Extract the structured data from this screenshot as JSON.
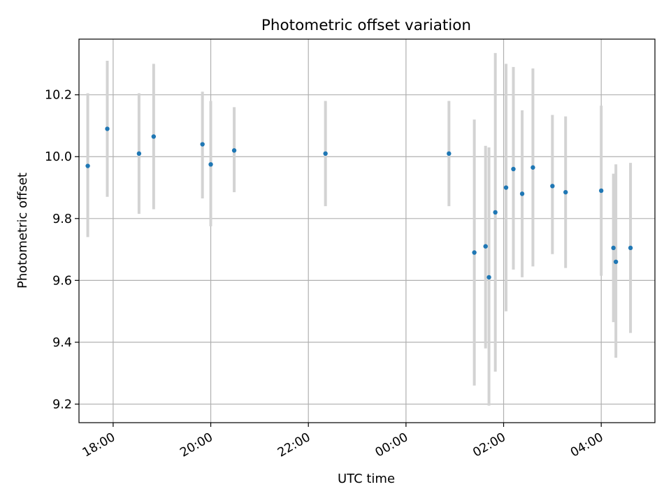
{
  "chart_data": {
    "type": "scatter",
    "title": "Photometric offset variation",
    "xlabel": "UTC time",
    "ylabel": "Photometric offset",
    "x_unit": "hour",
    "x_tick_labels": [
      "18:00",
      "20:00",
      "22:00",
      "00:00",
      "02:00",
      "04:00"
    ],
    "x_tick_values": [
      18,
      20,
      22,
      24,
      26,
      28
    ],
    "xlim": [
      17.3,
      29.1
    ],
    "y_tick_labels": [
      "9.2",
      "9.4",
      "9.6",
      "9.8",
      "10.0",
      "10.2"
    ],
    "y_tick_values": [
      9.2,
      9.4,
      9.6,
      9.8,
      10.0,
      10.2
    ],
    "ylim": [
      9.14,
      10.38
    ],
    "grid": true,
    "marker_color": "#1f77b4",
    "errorbar_color": "#d3d3d3",
    "series": [
      {
        "x": [
          17.48,
          17.88,
          18.53,
          18.83,
          19.83,
          20.0,
          20.48,
          22.35,
          24.88,
          25.4,
          25.63,
          25.7,
          25.83,
          26.05,
          26.2,
          26.38,
          26.6,
          27.0,
          27.27,
          28.0,
          28.25,
          28.3,
          28.6
        ],
        "y": [
          9.97,
          10.09,
          10.01,
          10.065,
          10.04,
          9.975,
          10.02,
          10.01,
          10.01,
          9.69,
          9.71,
          9.61,
          9.82,
          9.9,
          9.96,
          9.88,
          9.965,
          9.905,
          9.885,
          9.89,
          9.705,
          9.66,
          9.705
        ],
        "y_low": [
          9.74,
          9.87,
          9.815,
          9.83,
          9.865,
          9.775,
          9.885,
          9.84,
          9.84,
          9.26,
          9.38,
          9.195,
          9.305,
          9.5,
          9.635,
          9.61,
          9.645,
          9.685,
          9.64,
          9.615,
          9.465,
          9.35,
          9.43
        ],
        "y_high": [
          10.205,
          10.31,
          10.205,
          10.3,
          10.21,
          10.18,
          10.16,
          10.18,
          10.18,
          10.12,
          10.035,
          10.03,
          10.335,
          10.3,
          10.29,
          10.15,
          10.285,
          10.135,
          10.13,
          10.165,
          9.945,
          9.975,
          9.98
        ]
      }
    ]
  }
}
